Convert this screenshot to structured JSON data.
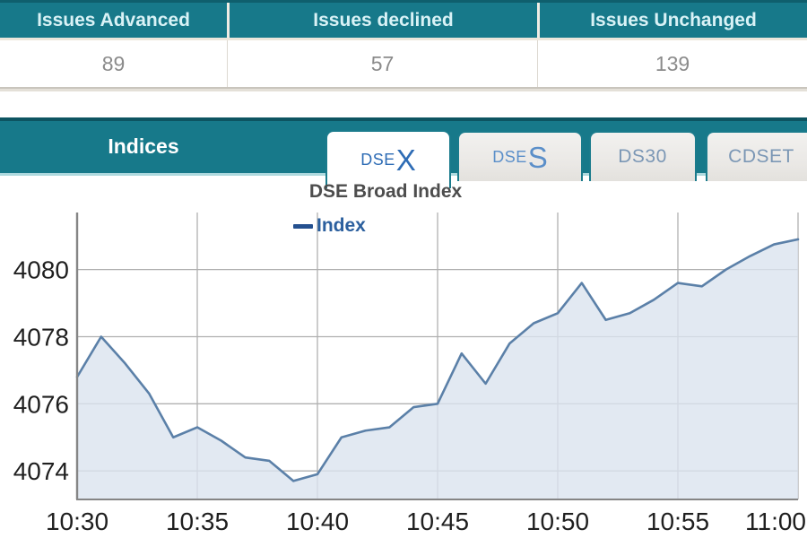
{
  "summary_table": {
    "columns": [
      {
        "header": "Issues Advanced",
        "value": "89"
      },
      {
        "header": "Issues declined",
        "value": "57"
      },
      {
        "header": "Issues Unchanged",
        "value": "139"
      }
    ]
  },
  "indices": {
    "title": "Indices",
    "tabs": [
      {
        "label": "DSEX",
        "prefix": "DSE",
        "big": "X",
        "active": true
      },
      {
        "label": "DSES",
        "prefix": "DSE",
        "big": "S",
        "active": false
      },
      {
        "label": "DS30",
        "prefix": "DS30",
        "big": "",
        "active": false
      },
      {
        "label": "CDSET",
        "prefix": "CDSET",
        "big": "",
        "active": false
      }
    ]
  },
  "chart_data": {
    "type": "area",
    "title": "DSE Broad Index",
    "legend": "Index",
    "legend_position": "top",
    "grid": true,
    "xlabel": "",
    "ylabel": "",
    "x": [
      "10:30",
      "10:31",
      "10:32",
      "10:33",
      "10:34",
      "10:35",
      "10:36",
      "10:37",
      "10:38",
      "10:39",
      "10:40",
      "10:41",
      "10:42",
      "10:43",
      "10:44",
      "10:45",
      "10:46",
      "10:47",
      "10:48",
      "10:49",
      "10:50",
      "10:51",
      "10:52",
      "10:53",
      "10:54",
      "10:55",
      "10:56",
      "10:57",
      "10:58",
      "10:59",
      "11:00"
    ],
    "values": [
      4076.8,
      4078.0,
      4077.2,
      4076.3,
      4075.0,
      4075.3,
      4074.9,
      4074.4,
      4074.3,
      4073.7,
      4073.9,
      4075.0,
      4075.2,
      4075.3,
      4075.9,
      4076.0,
      4077.5,
      4076.6,
      4077.8,
      4078.4,
      4078.7,
      4079.6,
      4078.5,
      4078.7,
      4079.1,
      4079.6,
      4079.5,
      4080.0,
      4080.4,
      4080.75,
      4080.9
    ],
    "x_labels": [
      "10:30",
      "10:35",
      "10:40",
      "10:45",
      "10:50",
      "10:55",
      "11:00"
    ],
    "y_ticks": [
      4074,
      4076,
      4078,
      4080
    ],
    "ylim": [
      4073.15,
      4081.7
    ],
    "colors": {
      "line": "#5b80a8",
      "fill": "#dbe4ef",
      "grid": "#b0b0b0",
      "axis": "#858585",
      "tick_text": "#1f1f1f"
    }
  }
}
